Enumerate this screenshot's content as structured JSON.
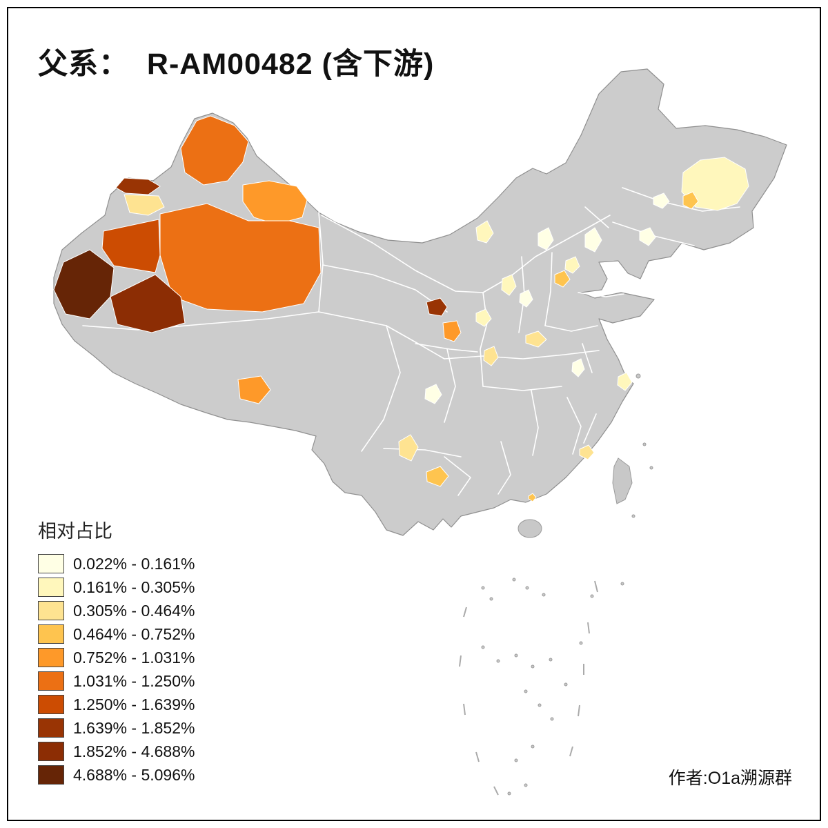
{
  "title": "父系：  R-AM00482 (含下游)",
  "legend": {
    "title": "相对占比",
    "items": [
      {
        "range": "0.022% - 0.161%",
        "color": "#FFFFE5"
      },
      {
        "range": "0.161% - 0.305%",
        "color": "#FFF7BC"
      },
      {
        "range": "0.305% - 0.464%",
        "color": "#FEE391"
      },
      {
        "range": "0.464% - 0.752%",
        "color": "#FEC44F"
      },
      {
        "range": "0.752% - 1.031%",
        "color": "#FE9929"
      },
      {
        "range": "1.031% - 1.250%",
        "color": "#EC7014"
      },
      {
        "range": "1.250% - 1.639%",
        "color": "#CC4C02"
      },
      {
        "range": "1.639% - 1.852%",
        "color": "#993404"
      },
      {
        "range": "1.852% - 4.688%",
        "color": "#8C2D04"
      },
      {
        "range": "4.688% - 5.096%",
        "color": "#662506"
      }
    ]
  },
  "credit": "作者:O1a溯源群",
  "map": {
    "base_fill": "#CCCCCC",
    "boundary_color": "#FFFFFF",
    "outline_color": "#8F8F8F",
    "regions": [
      {
        "color": "#EC7014"
      },
      {
        "color": "#993404"
      },
      {
        "color": "#FEE391"
      },
      {
        "color": "#FE9929"
      },
      {
        "color": "#EC7014"
      },
      {
        "color": "#CC4C02"
      },
      {
        "color": "#662506"
      },
      {
        "color": "#8C2D04"
      },
      {
        "color": "#FE9929"
      },
      {
        "color": "#993404"
      },
      {
        "color": "#FE9929"
      },
      {
        "color": "#FFF7BC"
      },
      {
        "color": "#FFFFE5"
      },
      {
        "color": "#FFFFE5"
      },
      {
        "color": "#FFF7BC"
      },
      {
        "color": "#FEC44F"
      },
      {
        "color": "#FFF7BC"
      },
      {
        "color": "#FFFFE5"
      },
      {
        "color": "#FFF7BC"
      },
      {
        "color": "#FEE391"
      },
      {
        "color": "#FEE391"
      },
      {
        "color": "#FFFFE5"
      },
      {
        "color": "#FFF7BC"
      },
      {
        "color": "#FFFFE5"
      },
      {
        "color": "#FFF7BC"
      },
      {
        "color": "#FEC44F"
      },
      {
        "color": "#FFFFE5"
      },
      {
        "color": "#FFFFE5"
      },
      {
        "color": "#FEE391"
      },
      {
        "color": "#FEC44F"
      },
      {
        "color": "#FEE391"
      },
      {
        "color": "#FEC44F"
      }
    ]
  }
}
